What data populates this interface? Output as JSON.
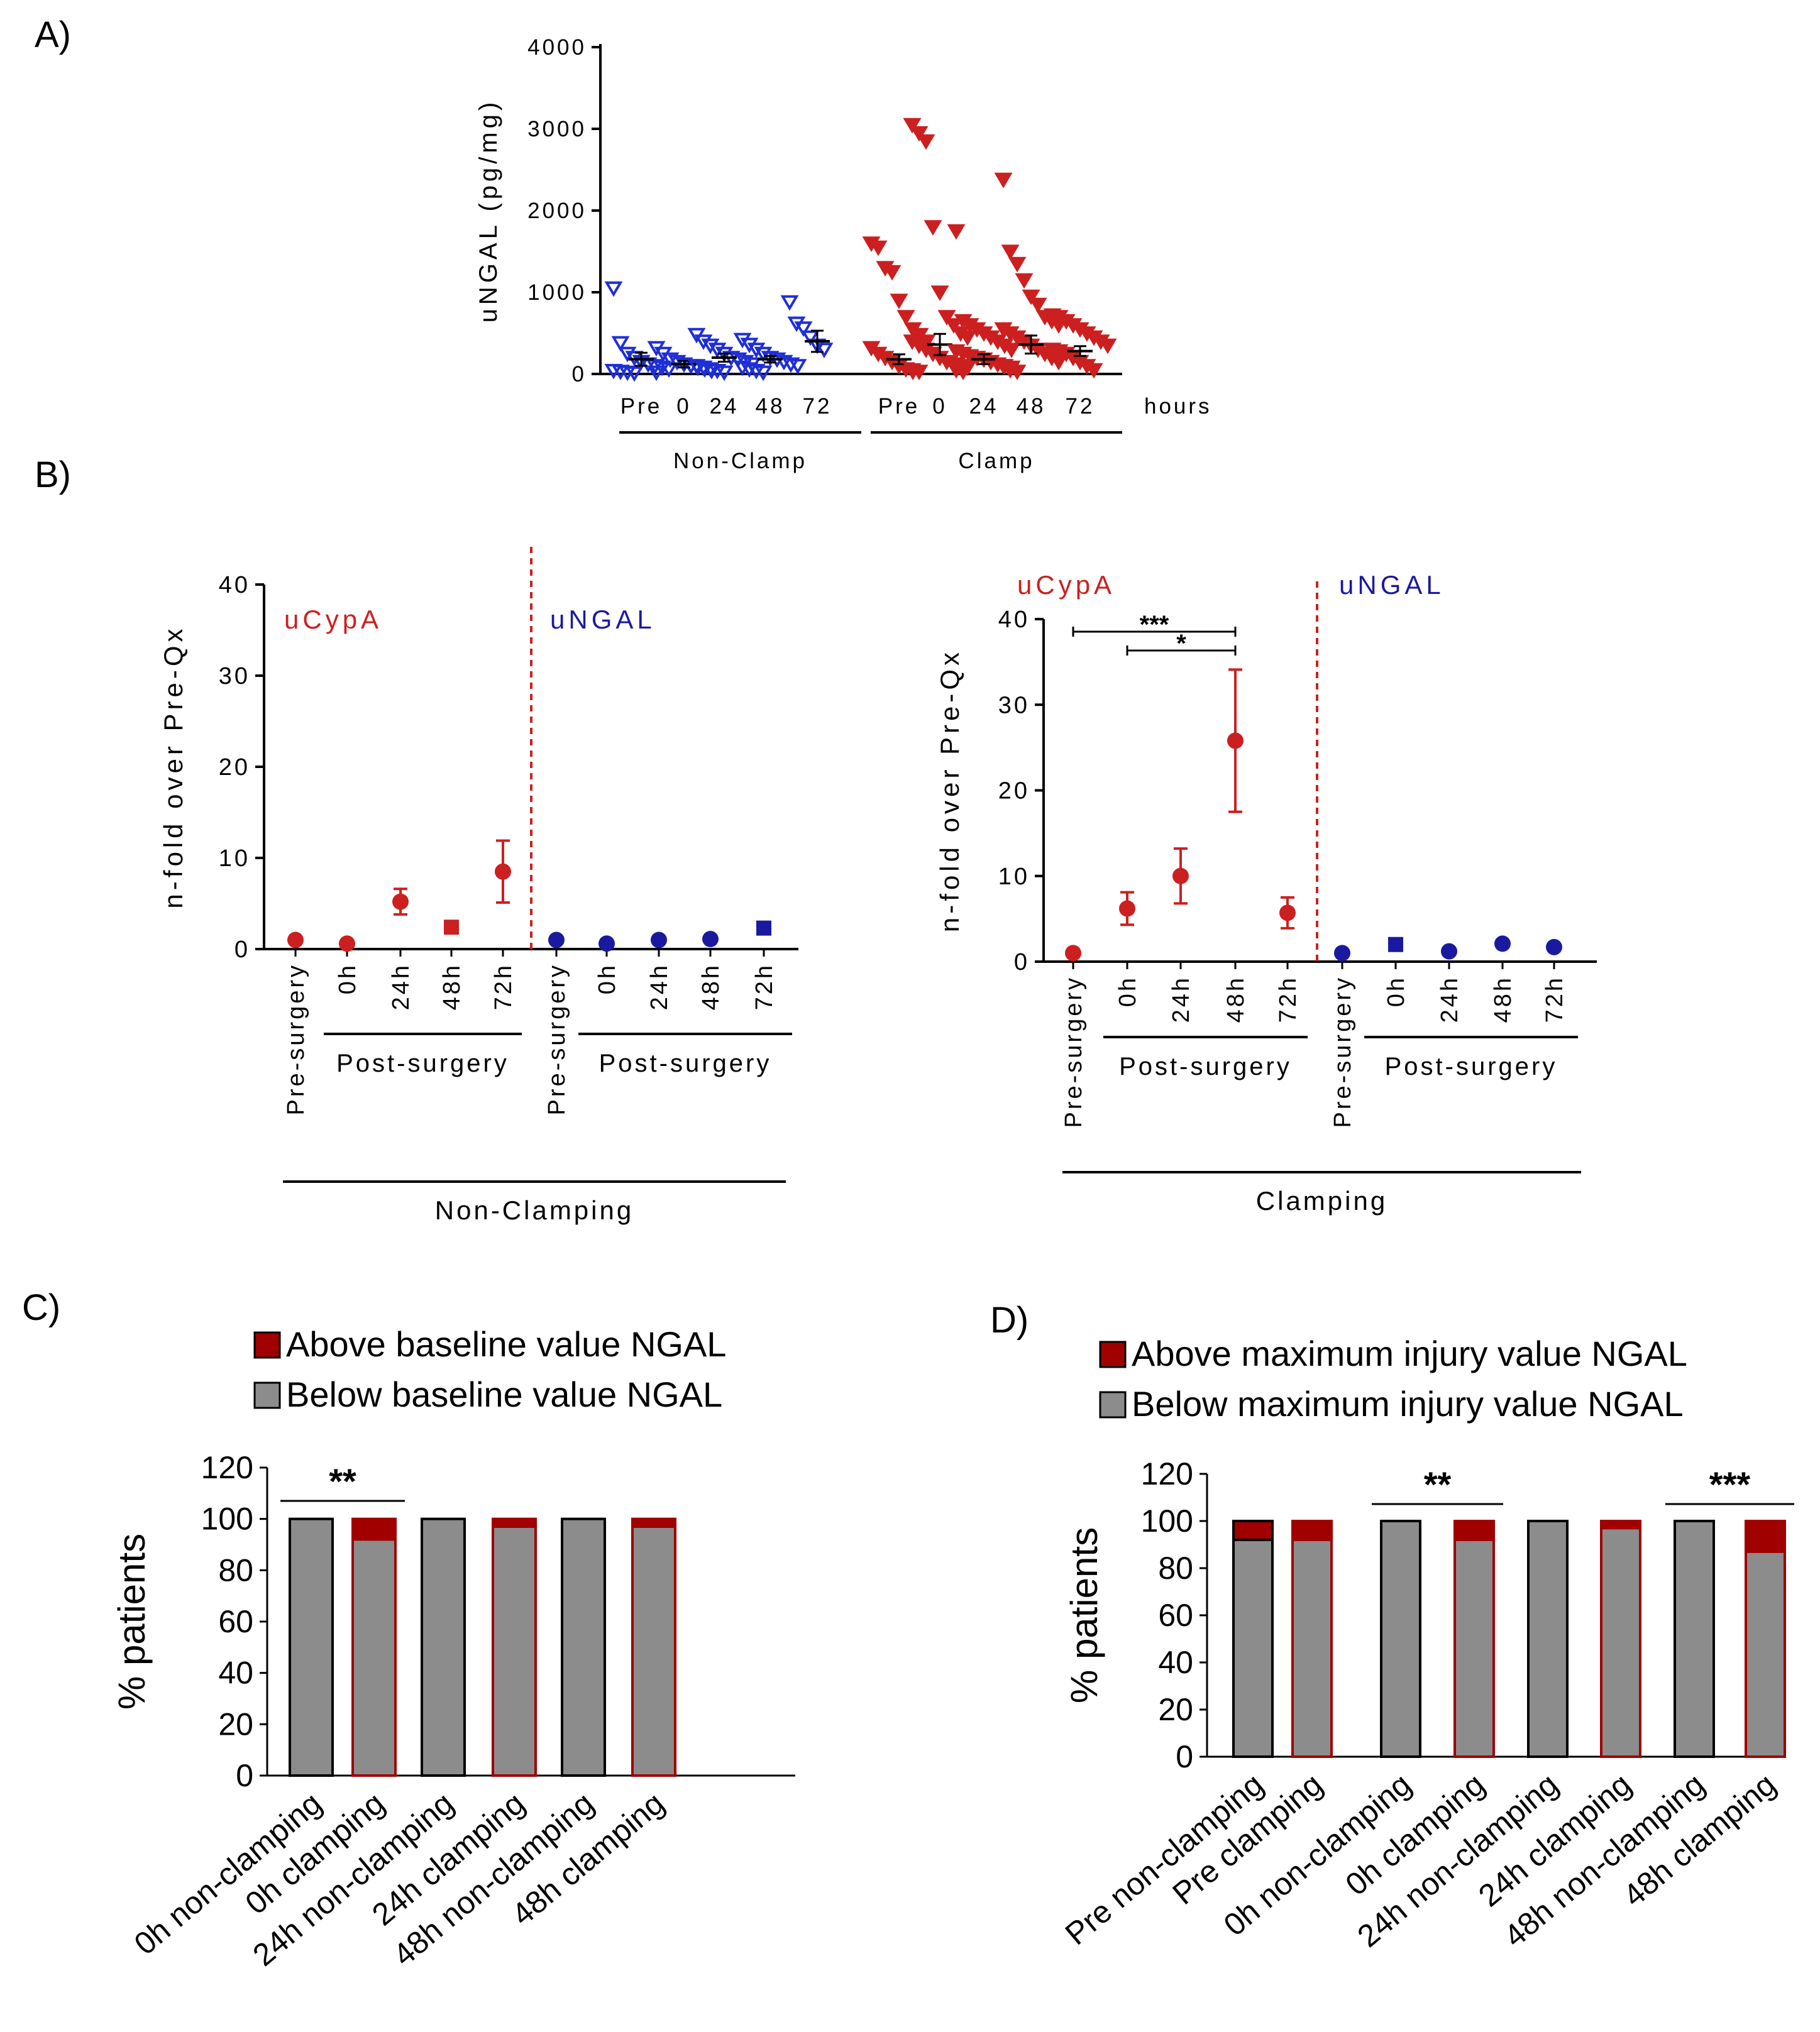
{
  "colors": {
    "clamp_red": "#cc1f1f",
    "nonclamp_blue": "#1f2fd6",
    "ngal_navy": "#1a1aa0",
    "bar_gray": "#8c8c8c",
    "bar_dark_red": "#a00000"
  },
  "panel_labels": {
    "a": "A)",
    "b": "B)",
    "c": "C)",
    "d": "D)"
  },
  "chart_data": [
    {
      "id": "A",
      "type": "scatter",
      "ylabel": "uNGAL (pg/mg)",
      "ylim": [
        0,
        4000
      ],
      "yticks": [
        "0",
        "1000",
        "2000",
        "3000",
        "4000"
      ],
      "categories": [
        "Pre",
        "0",
        "24",
        "48",
        "72",
        "Pre",
        "0",
        "24",
        "48",
        "72"
      ],
      "units_label": "hours",
      "groups": [
        {
          "name": "Non-Clamp",
          "from": 0,
          "to": 4
        },
        {
          "name": "Clamp",
          "from": 5,
          "to": 9
        }
      ],
      "series": [
        {
          "name": "Non-Clamp",
          "marker": "open-triangle-down",
          "color": "#1f2fd6",
          "points": [
            [
              1050,
              380,
              250,
              200,
              150,
              120,
              100,
              80,
              60,
              40,
              30,
              20,
              10
            ],
            [
              320,
              250,
              180,
              150,
              120,
              100,
              80,
              60,
              40,
              20
            ],
            [
              480,
              400,
              350,
              300,
              250,
              200,
              180,
              150,
              120,
              100,
              80,
              60,
              40,
              20
            ],
            [
              420,
              360,
              300,
              250,
              200,
              180,
              150,
              120,
              100,
              80,
              60,
              40,
              20
            ],
            [
              880,
              620,
              560,
              450,
              350,
              300
            ]
          ],
          "mean": [
            180,
            120,
            200,
            180,
            400
          ],
          "sem": [
            80,
            40,
            50,
            40,
            130
          ]
        },
        {
          "name": "Clamp",
          "marker": "filled-triangle-down",
          "color": "#cc1f1f",
          "points": [
            [
              1600,
              1550,
              1300,
              1250,
              900,
              700,
              550,
              480,
              400,
              320,
              250,
              200,
              150,
              100,
              60,
              30
            ],
            [
              3050,
              2950,
              2850,
              1800,
              1000,
              700,
              600,
              500,
              450,
              400,
              350,
              300,
              250,
              200,
              150,
              120,
              100,
              80,
              50,
              30
            ],
            [
              1750,
              650,
              600,
              550,
              500,
              450,
              400,
              350,
              300,
              280,
              250,
              220,
              200,
              180,
              150,
              120,
              100,
              80,
              50,
              30
            ],
            [
              2380,
              1500,
              1350,
              1150,
              950,
              850,
              700,
              650,
              600,
              550,
              500,
              450,
              400,
              350,
              300,
              250,
              200,
              150,
              100,
              50,
              30
            ],
            [
              720,
              700,
              650,
              600,
              550,
              500,
              450,
              400,
              350,
              300,
              280,
              250,
              200,
              150,
              100,
              50
            ]
          ],
          "mean": [
            180,
            360,
            180,
            360,
            280
          ],
          "sem": [
            60,
            130,
            60,
            110,
            60
          ]
        }
      ]
    },
    {
      "id": "B-left",
      "type": "scatter",
      "ylabel": "n-fold over Pre-Qx",
      "ylim": [
        0,
        40
      ],
      "yticks": [
        "0",
        "10",
        "20",
        "30",
        "40"
      ],
      "xlabel": "Non-Clamping",
      "sublabel": "Post-surgery",
      "categories": [
        "Pre-surgery",
        "0h",
        "24h",
        "48h",
        "72h",
        "Pre-surgery",
        "0h",
        "24h",
        "48h",
        "72h"
      ],
      "series": [
        {
          "name": "uCypA",
          "color": "#cc1f1f",
          "values": [
            1.0,
            0.6,
            5.2,
            2.4,
            8.5
          ],
          "err": [
            0.3,
            0.2,
            1.4,
            0.4,
            3.4
          ],
          "markers": [
            "circle",
            "circle",
            "circle",
            "square",
            "circle"
          ]
        },
        {
          "name": "uNGAL",
          "color": "#1a1aa0",
          "values": [
            1.0,
            0.6,
            1.0,
            1.1,
            2.3
          ],
          "err": [
            0.2,
            0.1,
            0.2,
            0.2,
            0.3
          ],
          "markers": [
            "circle",
            "circle",
            "circle",
            "circle",
            "square"
          ]
        }
      ]
    },
    {
      "id": "B-right",
      "type": "scatter",
      "ylabel": "n-fold over Pre-Qx",
      "ylim": [
        0,
        40
      ],
      "yticks": [
        "0",
        "10",
        "20",
        "30",
        "40"
      ],
      "xlabel": "Clamping",
      "sublabel": "Post-surgery",
      "categories": [
        "Pre-surgery",
        "0h",
        "24h",
        "48h",
        "72h",
        "Pre-surgery",
        "0h",
        "24h",
        "48h",
        "72h"
      ],
      "series": [
        {
          "name": "uCypA",
          "color": "#cc1f1f",
          "values": [
            1.0,
            6.2,
            10.0,
            25.8,
            5.7
          ],
          "err": [
            0.2,
            1.9,
            3.2,
            8.3,
            1.8
          ],
          "markers": [
            "circle",
            "circle",
            "circle",
            "circle",
            "circle"
          ]
        },
        {
          "name": "uNGAL",
          "color": "#1a1aa0",
          "values": [
            1.0,
            2.0,
            1.2,
            2.1,
            1.7
          ],
          "err": [
            0.2,
            0.2,
            0.2,
            0.3,
            0.2
          ],
          "markers": [
            "circle",
            "square",
            "circle",
            "circle",
            "circle"
          ]
        }
      ],
      "significance": [
        {
          "from": 0,
          "to": 3,
          "label": "***"
        },
        {
          "from": 1,
          "to": 3,
          "label": "*"
        }
      ]
    },
    {
      "id": "C",
      "type": "bar",
      "stacked": true,
      "ylabel": "% patients",
      "ylim": [
        0,
        120
      ],
      "yticks": [
        "0",
        "20",
        "40",
        "60",
        "80",
        "100",
        "120"
      ],
      "legend": [
        "Above baseline value NGAL",
        "Below baseline value NGAL"
      ],
      "categories": [
        "0h non-clamping",
        "0h clamping",
        "24h non-clamping",
        "24h clamping",
        "48h non-clamping",
        "48h clamping"
      ],
      "series": [
        {
          "name": "Below baseline value NGAL",
          "color": "#8c8c8c",
          "values": [
            100,
            92,
            100,
            97,
            100,
            97
          ]
        },
        {
          "name": "Above baseline value NGAL",
          "color": "#a00000",
          "values": [
            0,
            8,
            0,
            3,
            0,
            3
          ]
        }
      ],
      "significance": [
        {
          "from": 0,
          "to": 1,
          "label": "**"
        }
      ]
    },
    {
      "id": "D",
      "type": "bar",
      "stacked": true,
      "ylabel": "% patients",
      "ylim": [
        0,
        120
      ],
      "yticks": [
        "0",
        "20",
        "40",
        "60",
        "80",
        "100",
        "120"
      ],
      "legend": [
        "Above maximum injury value NGAL",
        "Below maximum injury value NGAL"
      ],
      "categories": [
        "Pre non-clamping",
        "Pre clamping",
        "0h non-clamping",
        "0h clamping",
        "24h non-clamping",
        "24h clamping",
        "48h non-clamping",
        "48h clamping"
      ],
      "series": [
        {
          "name": "Below maximum injury value NGAL",
          "color": "#8c8c8c",
          "values": [
            92,
            92,
            100,
            92,
            100,
            97,
            100,
            87
          ]
        },
        {
          "name": "Above maximum injury value NGAL",
          "color": "#a00000",
          "values": [
            8,
            8,
            0,
            8,
            0,
            3,
            0,
            13
          ]
        }
      ],
      "significance": [
        {
          "from": 2,
          "to": 3,
          "label": "**"
        },
        {
          "from": 6,
          "to": 7,
          "label": "***"
        }
      ]
    }
  ]
}
